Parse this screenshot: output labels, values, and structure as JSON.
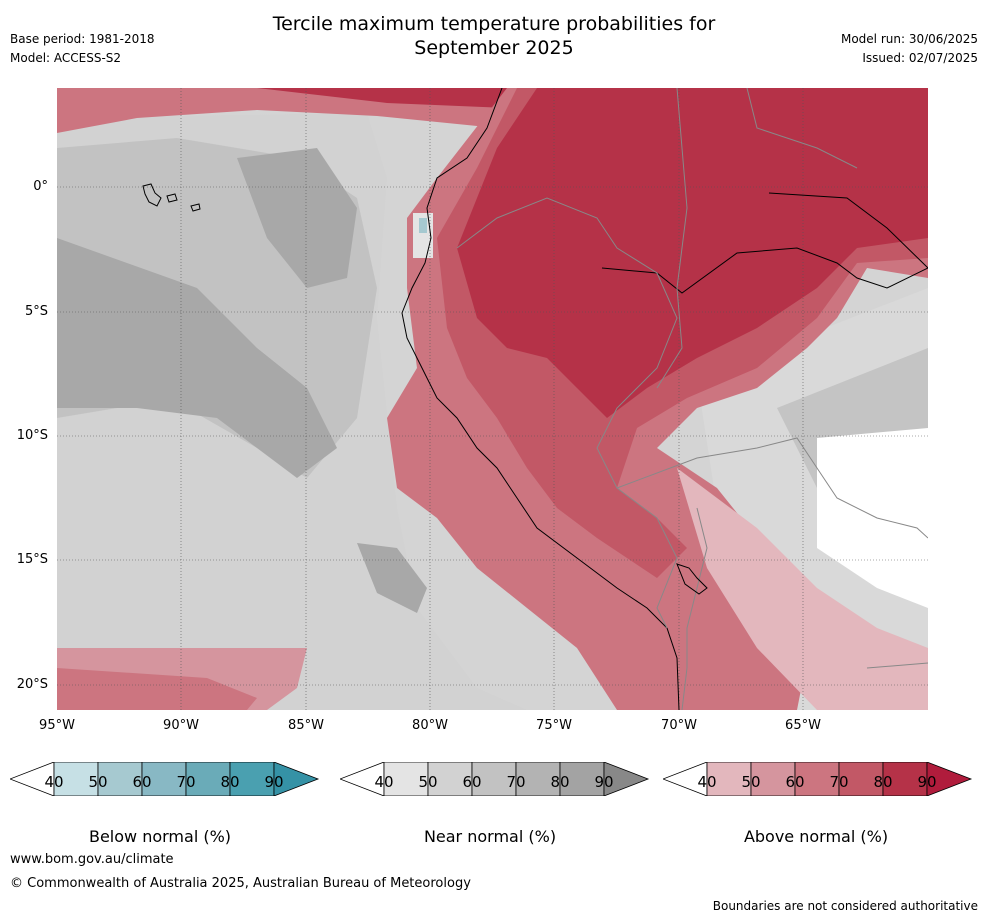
{
  "title_line1": "Tercile maximum temperature probabilities for",
  "title_line2": "September 2025",
  "base_period": "Base period: 1981-2018",
  "model": "Model: ACCESS-S2",
  "model_run": "Model run: 30/06/2025",
  "issued": "Issued: 02/07/2025",
  "lat_labels": [
    "0°",
    "5°S",
    "10°S",
    "15°S",
    "20°S"
  ],
  "lon_labels": [
    "95°W",
    "90°W",
    "85°W",
    "80°W",
    "75°W",
    "70°W",
    "65°W"
  ],
  "colorbars": [
    {
      "label": "Below normal (%)",
      "ticks": [
        "40",
        "50",
        "60",
        "70",
        "80",
        "90"
      ],
      "colors": [
        "#ffffff",
        "#c6e0e5",
        "#a6c9d0",
        "#88b8c4",
        "#6aabb8",
        "#4aa0b0",
        "#3592a6"
      ]
    },
    {
      "label": "Near normal (%)",
      "ticks": [
        "40",
        "50",
        "60",
        "70",
        "80",
        "90"
      ],
      "colors": [
        "#ffffff",
        "#e4e4e4",
        "#d2d2d2",
        "#c2c2c2",
        "#b3b3b3",
        "#a3a3a3",
        "#888888"
      ]
    },
    {
      "label": "Above normal (%)",
      "ticks": [
        "40",
        "50",
        "60",
        "70",
        "80",
        "90"
      ],
      "colors": [
        "#ffffff",
        "#e3b7bd",
        "#d5959e",
        "#cc7580",
        "#c25866",
        "#b53248",
        "#b01c3c"
      ]
    }
  ],
  "website": "www.bom.gov.au/climate",
  "copyright": "© Commonwealth of Australia 2025, Australian Bureau of Meteorology",
  "disclaimer": "Boundaries are not considered authoritative"
}
